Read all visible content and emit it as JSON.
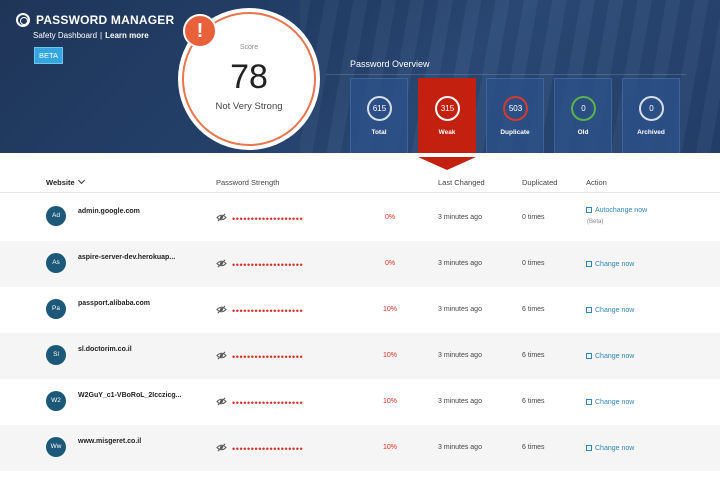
{
  "header": {
    "title": "PASSWORD MANAGER",
    "subtitle": "Safety Dashboard",
    "learn_more": "Learn more",
    "badge": "BETA"
  },
  "score": {
    "label": "Score",
    "value": "78",
    "status": "Not Very Strong",
    "alert": "!"
  },
  "overview": {
    "title": "Password Overview",
    "cards": [
      {
        "value": "615",
        "label": "Total"
      },
      {
        "value": "315",
        "label": "Weak"
      },
      {
        "value": "503",
        "label": "Duplicate"
      },
      {
        "value": "0",
        "label": "Old"
      },
      {
        "value": "0",
        "label": "Archived"
      }
    ]
  },
  "table": {
    "headers": {
      "website": "Website",
      "strength": "Password Strength",
      "changed": "Last Changed",
      "duplicated": "Duplicated",
      "action": "Action"
    },
    "rows": [
      {
        "initials": "Ad",
        "site": "admin.google.com",
        "dots": "•••••••••••••••••••",
        "strength": "0%",
        "changed": "3 minutes ago",
        "duplicated": "0 times",
        "action": "Autochange now",
        "action_note": "(Beta)"
      },
      {
        "initials": "As",
        "site": "aspire-server-dev.herokuap...",
        "dots": "•••••••••••••••••••",
        "strength": "0%",
        "changed": "3 minutes ago",
        "duplicated": "0 times",
        "action": "Change now"
      },
      {
        "initials": "Pa",
        "site": "passport.alibaba.com",
        "dots": "•••••••••••••••••••",
        "strength": "10%",
        "changed": "3 minutes ago",
        "duplicated": "6 times",
        "action": "Change now"
      },
      {
        "initials": "Sl",
        "site": "sl.doctorim.co.il",
        "dots": "•••••••••••••••••••",
        "strength": "10%",
        "changed": "3 minutes ago",
        "duplicated": "6 times",
        "action": "Change now"
      },
      {
        "initials": "W2",
        "site": "W2GuY_c1-VBoRoL_2Icczicg...",
        "dots": "•••••••••••••••••••",
        "strength": "10%",
        "changed": "3 minutes ago",
        "duplicated": "6 times",
        "action": "Change now"
      },
      {
        "initials": "Ww",
        "site": "www.misgeret.co.il",
        "dots": "•••••••••••••••••••",
        "strength": "10%",
        "changed": "3 minutes ago",
        "duplicated": "6 times",
        "action": "Change now"
      }
    ]
  },
  "colors": {
    "header_bg": "#23406b",
    "accent_orange": "#e8754e",
    "weak_red": "#c42010",
    "danger_text": "#d93025",
    "link_blue": "#2d87b8",
    "avatar_bg": "#1c5877"
  },
  "icons": {
    "brand": "shield-logo-icon",
    "alert": "exclamation-icon",
    "hidden": "eye-slash-icon",
    "autochange": "refresh-icon",
    "change": "external-link-icon",
    "sort": "chevron-down-icon"
  }
}
